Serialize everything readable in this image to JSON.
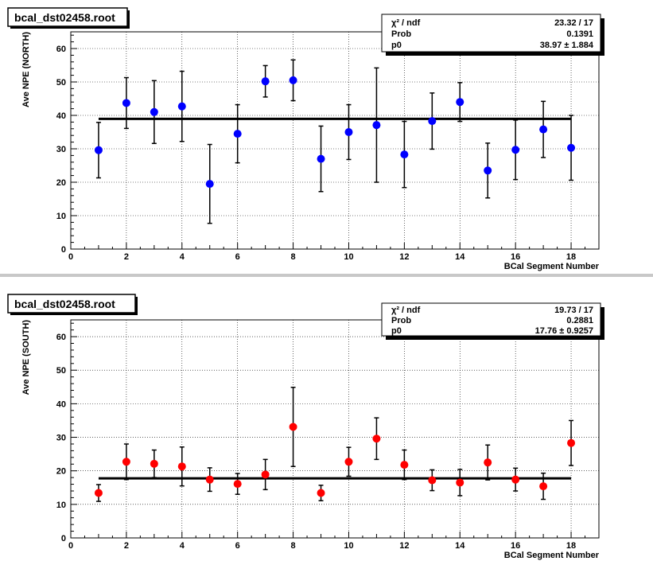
{
  "panels": [
    {
      "header_title": "bcal_dst02458.root",
      "stats": {
        "rows": [
          {
            "label": "χ² / ndf",
            "value": "23.32 / 17"
          },
          {
            "label": "Prob",
            "value": "0.1391"
          },
          {
            "label": "p0",
            "value": "38.97 ± 1.884"
          }
        ]
      }
    },
    {
      "header_title": "bcal_dst02458.root",
      "stats": {
        "rows": [
          {
            "label": "χ² / ndf",
            "value": "19.73 / 17"
          },
          {
            "label": "Prob",
            "value": "0.2881"
          },
          {
            "label": "p0",
            "value": "17.76 ± 0.9257"
          }
        ]
      }
    }
  ],
  "chart_data": [
    {
      "type": "scatter",
      "xlabel": "BCal Segment Number",
      "ylabel": "Ave NPE (NORTH)",
      "xlim": [
        0,
        19
      ],
      "ylim": [
        0,
        65
      ],
      "x_ticks": [
        0,
        2,
        4,
        6,
        8,
        10,
        12,
        14,
        16,
        18
      ],
      "y_ticks": [
        0,
        10,
        20,
        30,
        40,
        50,
        60
      ],
      "grid": true,
      "marker_color": "#0000ff",
      "fit_line": {
        "y": 38.97,
        "x_range": [
          1,
          18
        ],
        "color": "#000000"
      },
      "points": [
        {
          "x": 1,
          "y": 29.6,
          "err": 8.3
        },
        {
          "x": 2,
          "y": 43.7,
          "err": 7.6
        },
        {
          "x": 3,
          "y": 41.0,
          "err": 9.4
        },
        {
          "x": 4,
          "y": 42.7,
          "err": 10.5
        },
        {
          "x": 5,
          "y": 19.5,
          "err": 11.8
        },
        {
          "x": 6,
          "y": 34.5,
          "err": 8.7
        },
        {
          "x": 7,
          "y": 50.2,
          "err": 4.7
        },
        {
          "x": 8,
          "y": 50.5,
          "err": 6.1
        },
        {
          "x": 9,
          "y": 27.0,
          "err": 9.8
        },
        {
          "x": 10,
          "y": 35.0,
          "err": 8.2
        },
        {
          "x": 11,
          "y": 37.1,
          "err": 17.1
        },
        {
          "x": 12,
          "y": 28.3,
          "err": 9.9
        },
        {
          "x": 13,
          "y": 38.3,
          "err": 8.4
        },
        {
          "x": 14,
          "y": 44.0,
          "err": 5.8
        },
        {
          "x": 15,
          "y": 23.5,
          "err": 8.2
        },
        {
          "x": 16,
          "y": 29.7,
          "err": 8.9
        },
        {
          "x": 17,
          "y": 35.8,
          "err": 8.4
        },
        {
          "x": 18,
          "y": 30.3,
          "err": 9.7
        }
      ]
    },
    {
      "type": "scatter",
      "xlabel": "BCal Segment Number",
      "ylabel": "Ave NPE (SOUTH)",
      "xlim": [
        0,
        19
      ],
      "ylim": [
        0,
        65
      ],
      "x_ticks": [
        0,
        2,
        4,
        6,
        8,
        10,
        12,
        14,
        16,
        18
      ],
      "y_ticks": [
        0,
        10,
        20,
        30,
        40,
        50,
        60
      ],
      "grid": true,
      "marker_color": "#ff0000",
      "fit_line": {
        "y": 17.76,
        "x_range": [
          1,
          18
        ],
        "color": "#000000"
      },
      "points": [
        {
          "x": 1,
          "y": 13.4,
          "err": 2.5
        },
        {
          "x": 2,
          "y": 22.7,
          "err": 5.3
        },
        {
          "x": 3,
          "y": 22.1,
          "err": 4.1
        },
        {
          "x": 4,
          "y": 21.3,
          "err": 5.8
        },
        {
          "x": 5,
          "y": 17.4,
          "err": 3.5
        },
        {
          "x": 6,
          "y": 16.1,
          "err": 3.1
        },
        {
          "x": 7,
          "y": 18.9,
          "err": 4.5
        },
        {
          "x": 8,
          "y": 33.1,
          "err": 11.8
        },
        {
          "x": 9,
          "y": 13.4,
          "err": 2.3
        },
        {
          "x": 10,
          "y": 22.7,
          "err": 4.3
        },
        {
          "x": 11,
          "y": 29.6,
          "err": 6.2
        },
        {
          "x": 12,
          "y": 21.8,
          "err": 4.4
        },
        {
          "x": 13,
          "y": 17.2,
          "err": 3.1
        },
        {
          "x": 14,
          "y": 16.5,
          "err": 3.9
        },
        {
          "x": 15,
          "y": 22.5,
          "err": 5.2
        },
        {
          "x": 16,
          "y": 17.4,
          "err": 3.4
        },
        {
          "x": 17,
          "y": 15.4,
          "err": 3.9
        },
        {
          "x": 18,
          "y": 28.3,
          "err": 6.7
        }
      ]
    }
  ]
}
